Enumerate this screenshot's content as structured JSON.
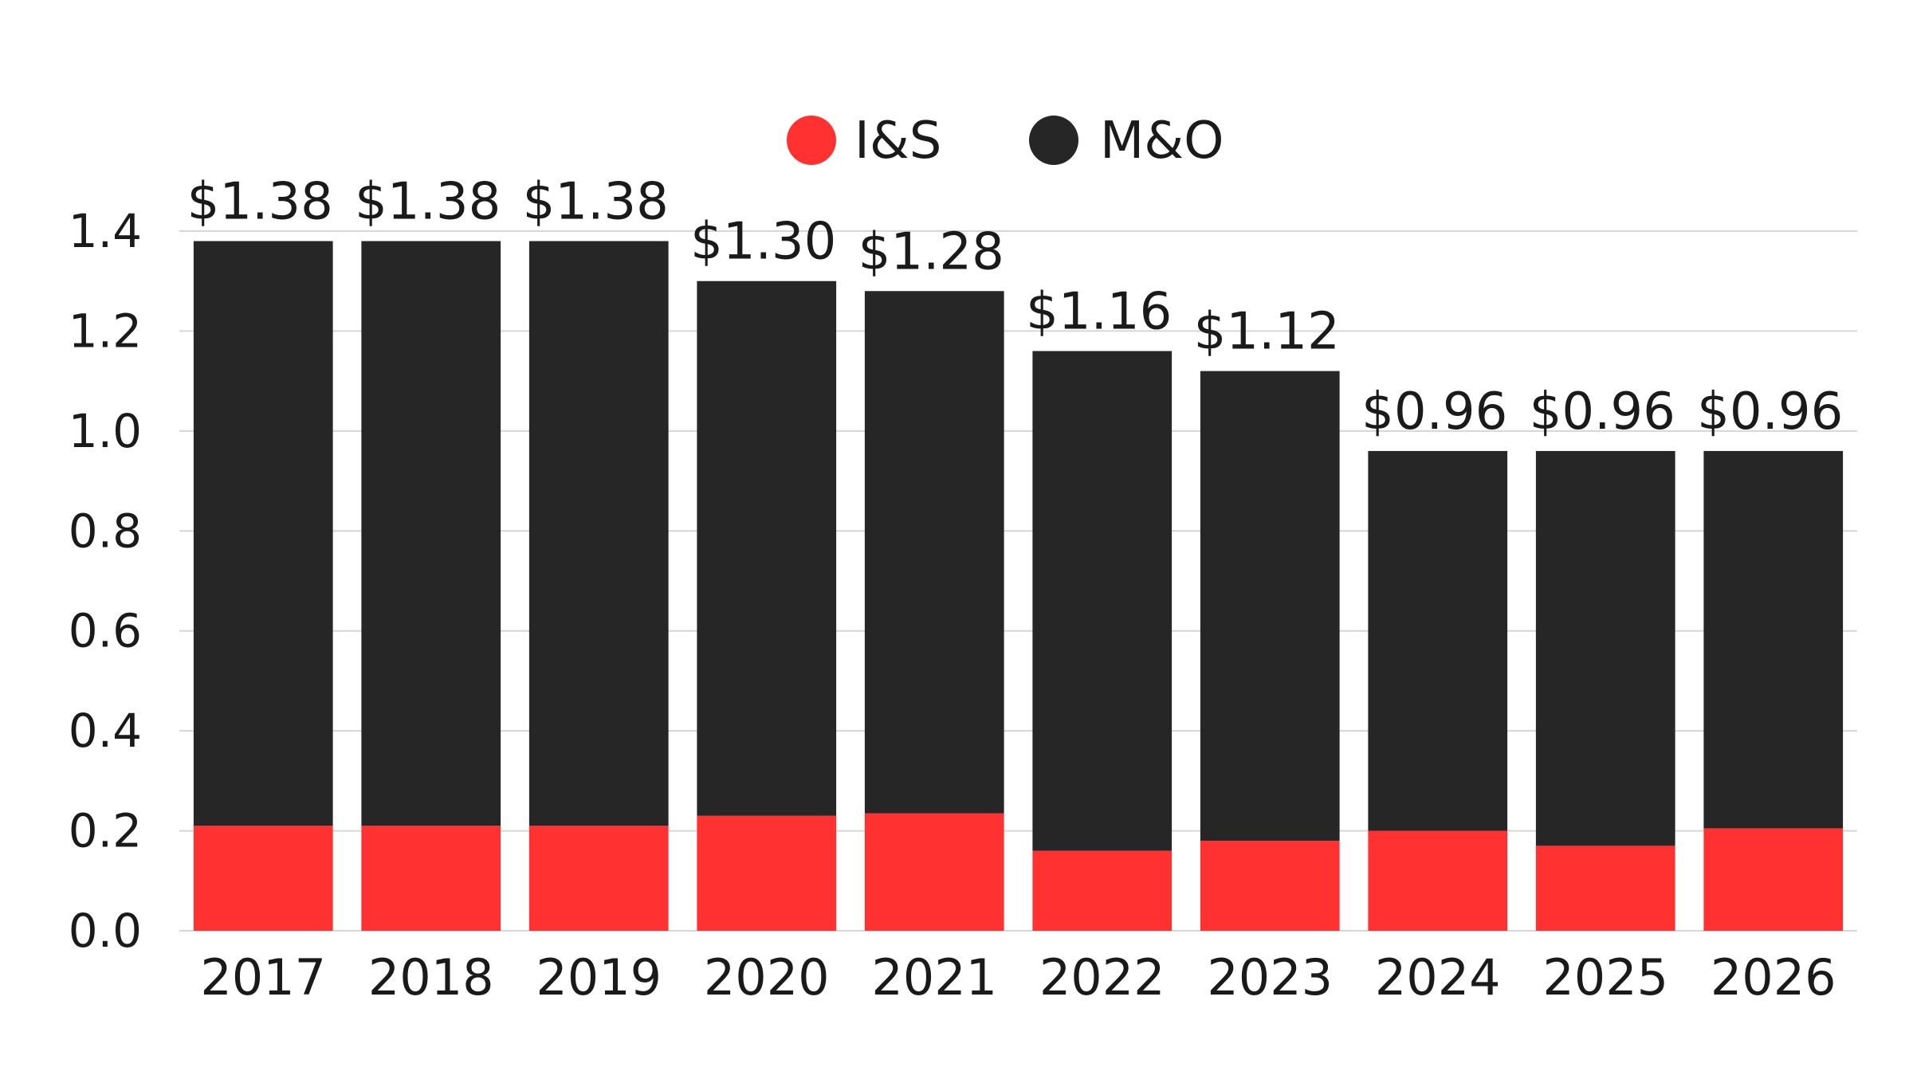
{
  "chart_data": {
    "type": "bar",
    "stacked": true,
    "categories": [
      "2017",
      "2018",
      "2019",
      "2020",
      "2021",
      "2022",
      "2023",
      "2024",
      "2025",
      "2026"
    ],
    "series": [
      {
        "name": "I&S",
        "color": "#ff3131",
        "values": [
          0.21,
          0.21,
          0.21,
          0.23,
          0.235,
          0.16,
          0.18,
          0.2,
          0.17,
          0.205
        ]
      },
      {
        "name": "M&O",
        "color": "#262626",
        "values": [
          1.17,
          1.17,
          1.17,
          1.07,
          1.045,
          1.0,
          0.94,
          0.76,
          0.79,
          0.755
        ]
      }
    ],
    "totals": [
      1.38,
      1.38,
      1.38,
      1.3,
      1.28,
      1.16,
      1.12,
      0.96,
      0.96,
      0.96
    ],
    "data_labels": [
      "$1.38",
      "$1.38",
      "$1.38",
      "$1.30",
      "$1.28",
      "$1.16",
      "$1.12",
      "$0.96",
      "$0.96",
      "$0.96"
    ],
    "y_ticks": [
      "0.0",
      "0.2",
      "0.4",
      "0.6",
      "0.8",
      "1.0",
      "1.2",
      "1.4"
    ],
    "ylim": [
      0,
      1.4
    ],
    "grid": true,
    "legend_position": "top-center"
  }
}
